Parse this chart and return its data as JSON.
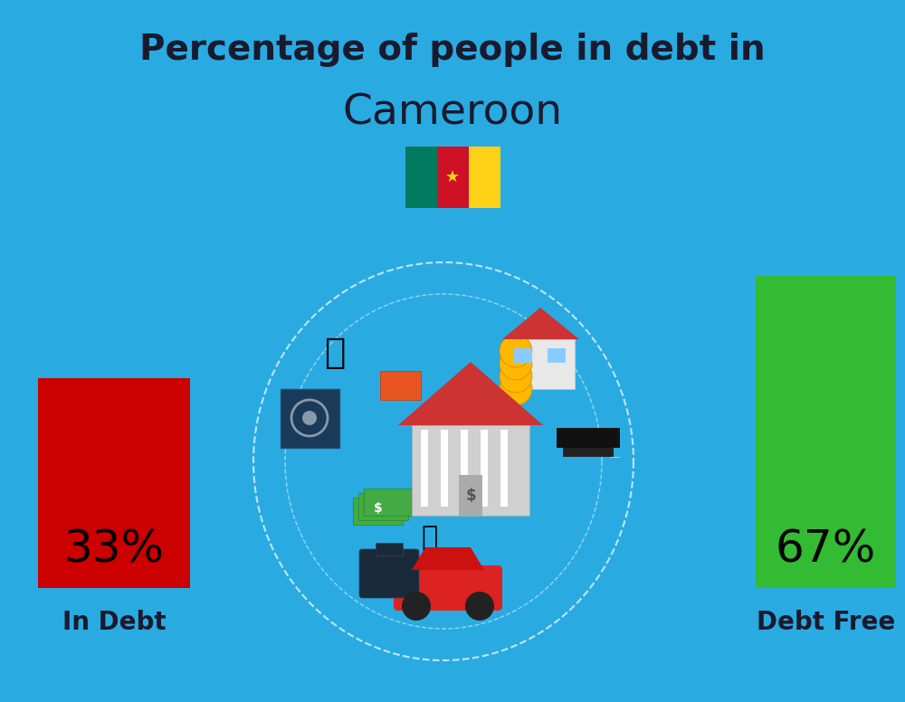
{
  "title_line1": "Percentage of people in debt in",
  "title_line2": "Cameroon",
  "background_color": "#29ABE2",
  "bar1_label": "In Debt",
  "bar1_value": 33,
  "bar1_pct": "33%",
  "bar1_color": "#CC0000",
  "bar2_label": "Debt Free",
  "bar2_value": 67,
  "bar2_pct": "67%",
  "bar2_color": "#33BB33",
  "title_fontsize": 28,
  "country_fontsize": 34,
  "pct_fontsize": 36,
  "label_fontsize": 20,
  "title_color": "#1a1a2e",
  "label_color": "#1a1a2e",
  "pct_color": "#000000",
  "flag_green": "#007A5E",
  "flag_red": "#CE1126",
  "flag_yellow": "#FCD116"
}
